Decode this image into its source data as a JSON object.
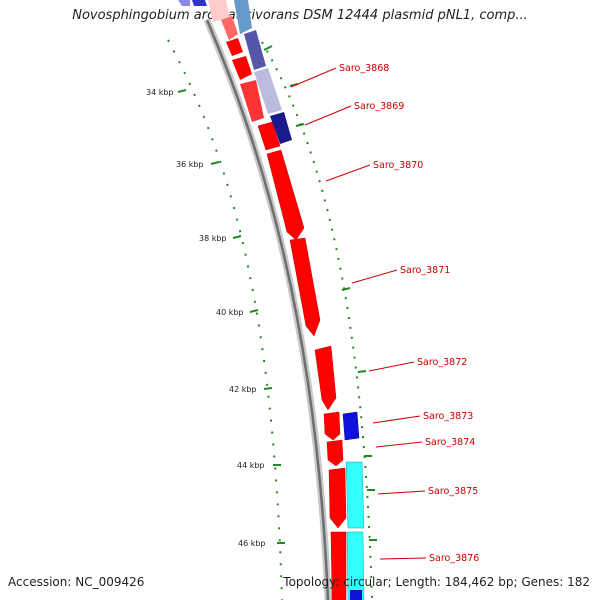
{
  "title": "Novosphingobium aromaticivorans DSM 12444 plasmid pNL1, comp...",
  "footer": {
    "accession": "Accession: NC_009426",
    "topology": "Topology: circular; Length: 184,462 bp; Genes: 182"
  },
  "colors": {
    "forward_gene": "#ff0000",
    "reverse_gene": "#1010dd",
    "cyan_gene": "#33ffff",
    "backbone": "#777777",
    "gc_ticks": "#228822",
    "label": "#cc0000"
  },
  "scale": {
    "unit": "kbp",
    "ticks": [
      {
        "value": 34,
        "label": "34 kbp"
      },
      {
        "value": 36,
        "label": "36 kbp"
      },
      {
        "value": 38,
        "label": "38 kbp"
      },
      {
        "value": 40,
        "label": "40 kbp"
      },
      {
        "value": 42,
        "label": "42 kbp"
      },
      {
        "value": 44,
        "label": "44 kbp"
      },
      {
        "value": 46,
        "label": "46 kbp"
      }
    ]
  },
  "genes": [
    {
      "name": "Saro_3868",
      "strand": "+"
    },
    {
      "name": "Saro_3869",
      "strand": "+"
    },
    {
      "name": "Saro_3870",
      "strand": "+"
    },
    {
      "name": "Saro_3871",
      "strand": "+"
    },
    {
      "name": "Saro_3872",
      "strand": "+"
    },
    {
      "name": "Saro_3873",
      "strand": "-"
    },
    {
      "name": "Saro_3874",
      "strand": "+"
    },
    {
      "name": "Saro_3875",
      "strand": "-"
    },
    {
      "name": "Saro_3876",
      "strand": "+"
    }
  ]
}
